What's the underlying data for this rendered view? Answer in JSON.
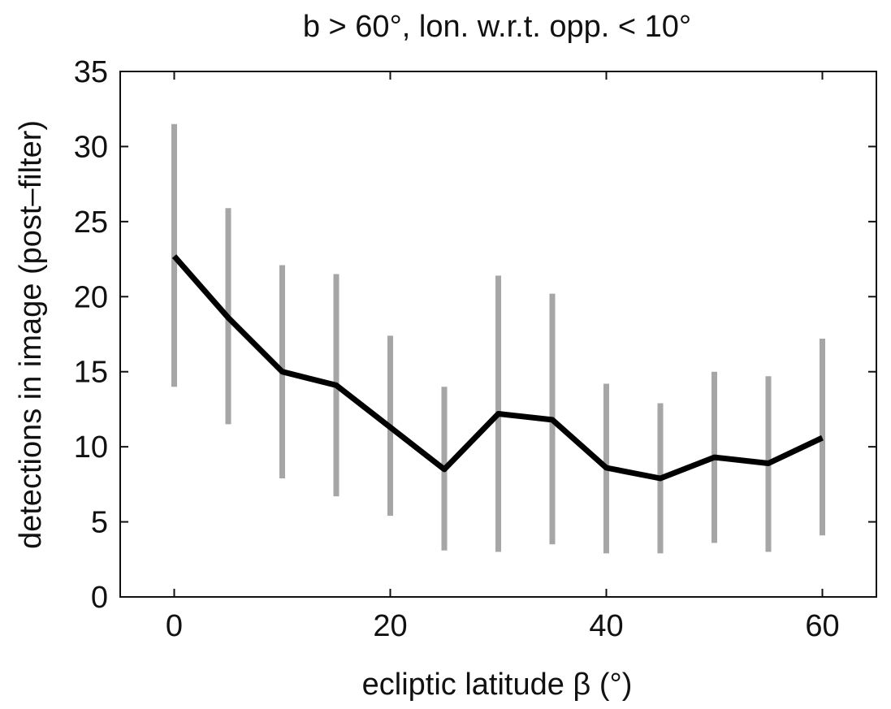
{
  "chart_data": {
    "type": "line",
    "title": "b > 60°, lon. w.r.t. opp. < 10°",
    "xlabel": "ecliptic latitude β (°)",
    "ylabel": "detections in image (post–filter)",
    "xlim": [
      -5,
      65
    ],
    "ylim": [
      0,
      35
    ],
    "xticks": [
      0,
      20,
      40,
      60
    ],
    "yticks": [
      0,
      5,
      10,
      15,
      20,
      25,
      30,
      35
    ],
    "grid": false,
    "x": [
      0,
      5,
      10,
      15,
      20,
      25,
      30,
      35,
      40,
      45,
      50,
      55,
      60
    ],
    "series": [
      {
        "values": [
          22.7,
          18.6,
          15.0,
          14.1,
          11.3,
          8.5,
          12.2,
          11.8,
          8.6,
          7.9,
          9.3,
          8.9,
          10.6
        ]
      }
    ],
    "error_bars": {
      "lower": [
        14.0,
        11.5,
        7.9,
        6.7,
        5.4,
        3.1,
        3.0,
        3.5,
        2.9,
        2.9,
        3.6,
        3.0,
        4.1
      ],
      "upper": [
        31.5,
        25.9,
        22.1,
        21.5,
        17.4,
        14.0,
        21.4,
        20.2,
        14.2,
        12.9,
        15.0,
        14.7,
        17.2
      ]
    },
    "colors": {
      "line": "#000000",
      "error_bar": "#a6a6a6",
      "axis": "#111111"
    }
  }
}
